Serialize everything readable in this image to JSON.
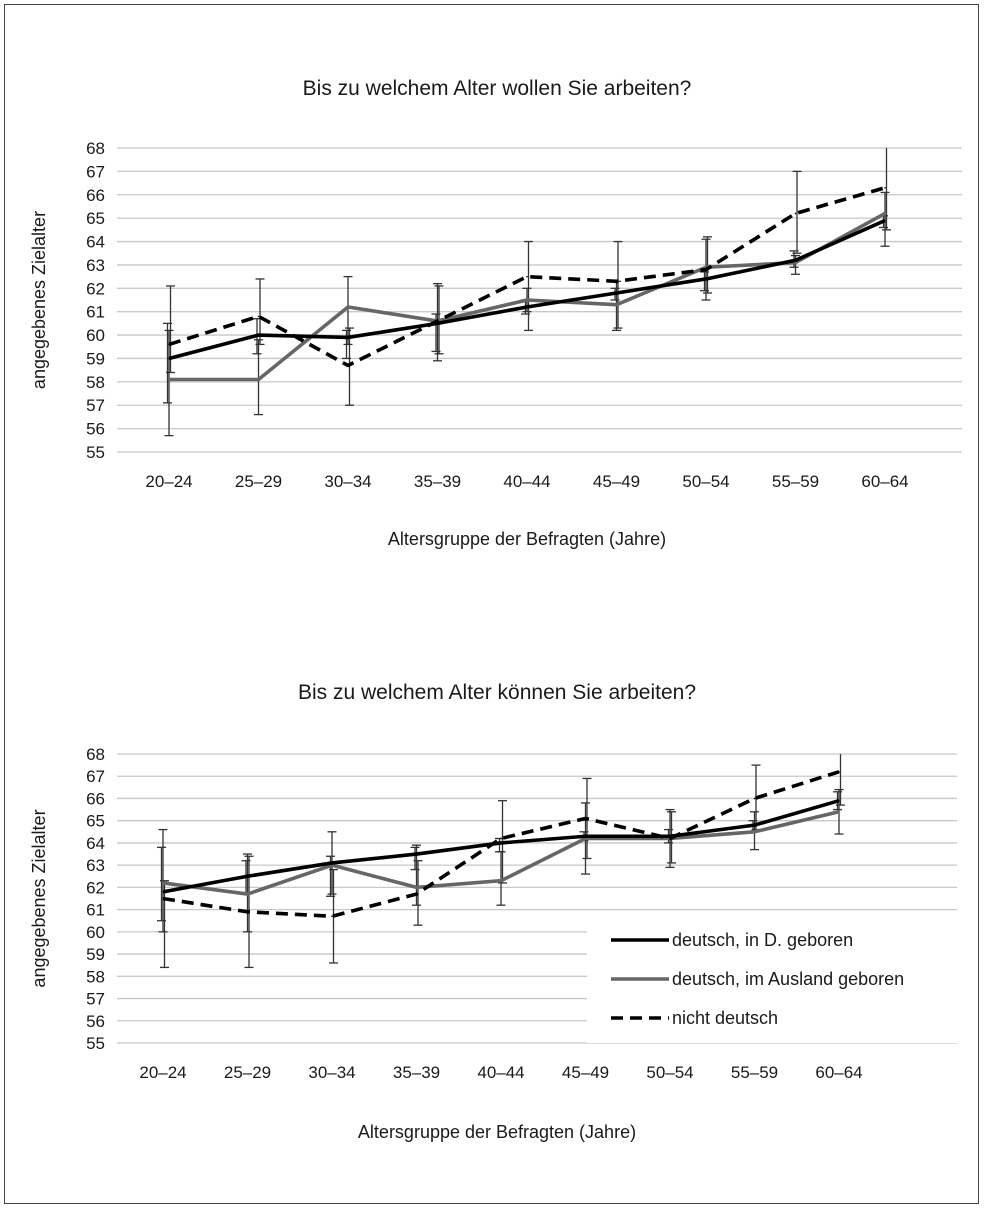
{
  "colors": {
    "deutsch_in_d": "#000000",
    "deutsch_ausland": "#666666",
    "nicht_deutsch": "#000000",
    "grid": "#c8c8c8",
    "error_bar": "#333333"
  },
  "legend": [
    {
      "key": "deutsch_in_d",
      "label": "deutsch, in D. geboren",
      "style": "solid"
    },
    {
      "key": "deutsch_ausland",
      "label": "deutsch, im Ausland geboren",
      "style": "solid"
    },
    {
      "key": "nicht_deutsch",
      "label": "nicht deutsch",
      "style": "dashed"
    }
  ],
  "chart_data": [
    {
      "type": "line",
      "title": "Bis zu welchem Alter wollen Sie arbeiten?",
      "xlabel": "Altersgruppe der Befragten (Jahre)",
      "ylabel": "angegebenes  Zielalter",
      "categories": [
        "20–24",
        "25–29",
        "30–34",
        "35–39",
        "40–44",
        "45–49",
        "50–54",
        "55–59",
        "60–64"
      ],
      "ylim": [
        55,
        68
      ],
      "yticks": [
        "55",
        "56",
        "57",
        "58",
        "59",
        "60",
        "61",
        "62",
        "63",
        "64",
        "65",
        "66",
        "67",
        "68"
      ],
      "grid": true,
      "legend": "none",
      "series": [
        {
          "name": "deutsch, in D. geboren",
          "key": "deutsch_in_d",
          "style": "solid",
          "values": [
            59.0,
            60.0,
            59.9,
            60.5,
            61.2,
            61.8,
            62.4,
            63.2,
            64.9
          ],
          "err_low": [
            57.1,
            59.2,
            59.0,
            59.3,
            60.9,
            61.5,
            61.9,
            62.9,
            64.6
          ],
          "err_high": [
            60.5,
            60.7,
            60.2,
            60.9,
            61.5,
            62.0,
            62.7,
            63.6,
            65.1
          ]
        },
        {
          "name": "deutsch, im Ausland geboren",
          "key": "deutsch_ausland",
          "style": "solid",
          "values": [
            58.1,
            58.1,
            61.2,
            60.6,
            61.5,
            61.3,
            62.9,
            63.1,
            65.2
          ],
          "err_low": [
            55.7,
            56.6,
            59.6,
            58.9,
            61.0,
            60.2,
            61.5,
            62.6,
            63.8
          ],
          "err_high": [
            60.2,
            59.8,
            62.5,
            62.2,
            62.0,
            62.3,
            64.1,
            63.4,
            66.1
          ]
        },
        {
          "name": "nicht deutsch",
          "key": "nicht_deutsch",
          "style": "dashed",
          "values": [
            59.6,
            60.8,
            58.7,
            60.6,
            62.5,
            62.3,
            62.8,
            65.2,
            66.3
          ],
          "err_low": [
            58.4,
            59.6,
            57.0,
            59.2,
            60.2,
            60.3,
            61.8,
            63.5,
            64.5
          ],
          "err_high": [
            62.1,
            62.4,
            60.3,
            62.1,
            64.0,
            64.0,
            64.2,
            67.0,
            68.0
          ]
        }
      ]
    },
    {
      "type": "line",
      "title": "Bis zu welchem Alter können Sie arbeiten?",
      "xlabel": "Altersgruppe der Befragten (Jahre)",
      "ylabel": "angegebenes  Zielalter",
      "categories": [
        "20–24",
        "25–29",
        "30–34",
        "35–39",
        "40–44",
        "45–49",
        "50–54",
        "55–59",
        "60–64"
      ],
      "ylim": [
        55,
        68
      ],
      "yticks": [
        "55",
        "56",
        "57",
        "58",
        "59",
        "60",
        "61",
        "62",
        "63",
        "64",
        "65",
        "66",
        "67",
        "68"
      ],
      "grid": true,
      "legend": "bottom-right",
      "series": [
        {
          "name": "deutsch, in D. geboren",
          "key": "deutsch_in_d",
          "style": "solid",
          "values": [
            61.8,
            62.5,
            63.1,
            63.5,
            64.0,
            64.3,
            64.3,
            64.8,
            65.9
          ],
          "err_low": [
            60.5,
            61.7,
            61.6,
            62.8,
            63.6,
            64.1,
            64.0,
            64.5,
            65.5
          ],
          "err_high": [
            63.8,
            63.2,
            63.4,
            63.8,
            64.2,
            64.5,
            64.6,
            65.0,
            66.3
          ]
        },
        {
          "name": "deutsch, im Ausland geboren",
          "key": "deutsch_ausland",
          "style": "solid",
          "values": [
            62.2,
            61.7,
            63.0,
            62.0,
            62.3,
            64.2,
            64.2,
            64.5,
            65.4
          ],
          "err_low": [
            60.0,
            60.0,
            61.7,
            61.2,
            61.2,
            62.6,
            62.9,
            63.7,
            64.4
          ],
          "err_high": [
            64.6,
            63.5,
            64.5,
            63.9,
            63.6,
            65.8,
            65.5,
            65.4,
            66.4
          ]
        },
        {
          "name": "nicht deutsch",
          "key": "nicht_deutsch",
          "style": "dashed",
          "values": [
            61.5,
            60.9,
            60.7,
            61.7,
            64.2,
            65.1,
            64.2,
            66.0,
            67.2
          ],
          "err_low": [
            58.4,
            58.4,
            58.6,
            60.3,
            62.2,
            63.3,
            63.1,
            64.6,
            65.7
          ],
          "err_high": [
            62.3,
            63.4,
            62.8,
            63.2,
            65.9,
            66.9,
            65.4,
            67.5,
            68.0
          ]
        }
      ]
    }
  ]
}
